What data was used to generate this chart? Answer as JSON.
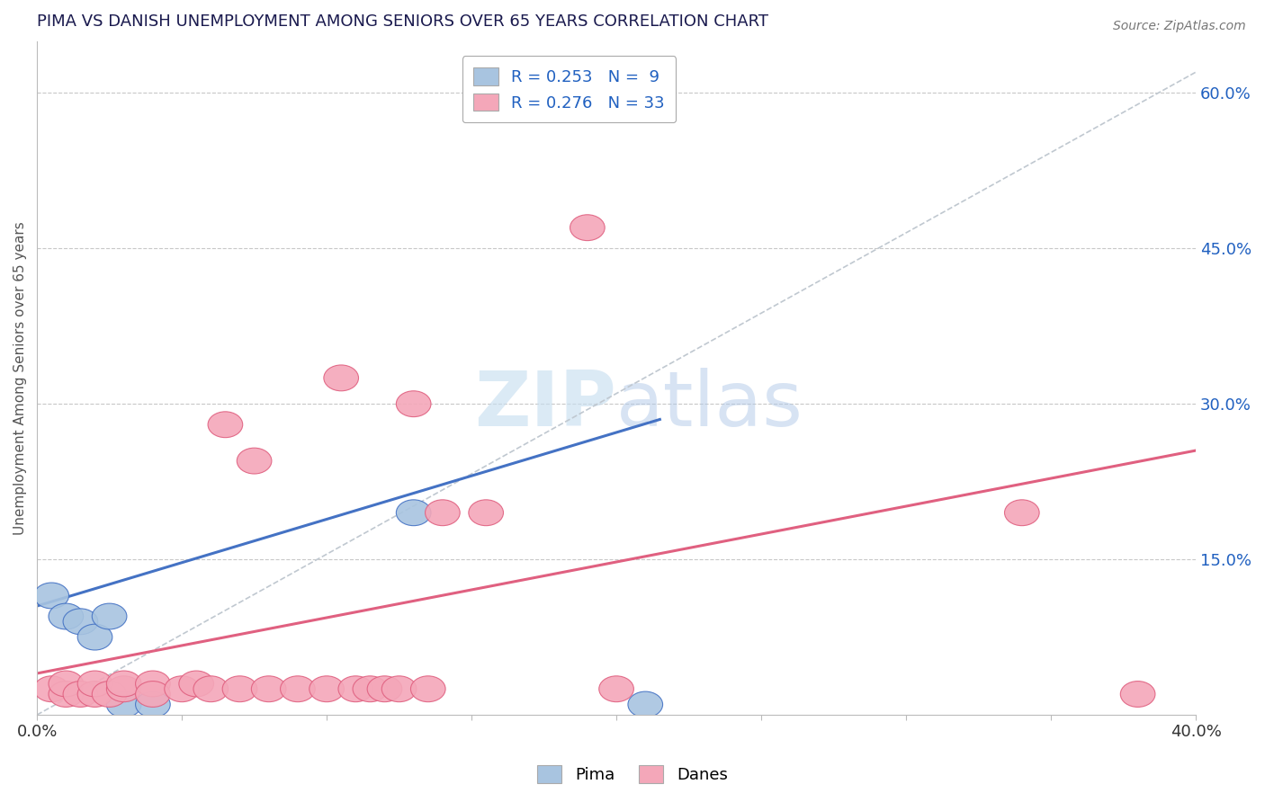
{
  "title": "PIMA VS DANISH UNEMPLOYMENT AMONG SENIORS OVER 65 YEARS CORRELATION CHART",
  "source_text": "Source: ZipAtlas.com",
  "ylabel": "Unemployment Among Seniors over 65 years",
  "xlim": [
    0.0,
    0.4
  ],
  "ylim": [
    0.0,
    0.65
  ],
  "xticks": [
    0.0,
    0.05,
    0.1,
    0.15,
    0.2,
    0.25,
    0.3,
    0.35,
    0.4
  ],
  "yticks_right": [
    0.15,
    0.3,
    0.45,
    0.6
  ],
  "ytick_right_labels": [
    "15.0%",
    "30.0%",
    "45.0%",
    "60.0%"
  ],
  "pima_color": "#a8c4e0",
  "pima_line_color": "#4472c4",
  "danes_color": "#f4a7b9",
  "danes_line_color": "#e06080",
  "dashed_line_color": "#c0c8d0",
  "legend_text_color": "#2060c0",
  "title_color": "#1a1a4e",
  "background_color": "#ffffff",
  "pima_scatter_x": [
    0.005,
    0.01,
    0.015,
    0.02,
    0.025,
    0.03,
    0.04,
    0.13,
    0.21
  ],
  "pima_scatter_y": [
    0.115,
    0.095,
    0.09,
    0.075,
    0.095,
    0.01,
    0.01,
    0.195,
    0.01
  ],
  "danes_scatter_x": [
    0.005,
    0.01,
    0.01,
    0.015,
    0.02,
    0.02,
    0.025,
    0.03,
    0.03,
    0.04,
    0.04,
    0.05,
    0.055,
    0.06,
    0.065,
    0.07,
    0.075,
    0.08,
    0.09,
    0.1,
    0.105,
    0.11,
    0.115,
    0.12,
    0.125,
    0.13,
    0.135,
    0.14,
    0.155,
    0.19,
    0.2,
    0.34,
    0.38
  ],
  "danes_scatter_y": [
    0.025,
    0.02,
    0.03,
    0.02,
    0.02,
    0.03,
    0.02,
    0.025,
    0.03,
    0.03,
    0.02,
    0.025,
    0.03,
    0.025,
    0.28,
    0.025,
    0.245,
    0.025,
    0.025,
    0.025,
    0.325,
    0.025,
    0.025,
    0.025,
    0.025,
    0.3,
    0.025,
    0.195,
    0.195,
    0.47,
    0.025,
    0.195,
    0.02
  ],
  "pima_line_x": [
    0.0,
    0.215
  ],
  "pima_line_y": [
    0.105,
    0.285
  ],
  "danes_line_x": [
    0.0,
    0.4
  ],
  "danes_line_y": [
    0.04,
    0.255
  ],
  "diag_line_x": [
    0.0,
    0.4
  ],
  "diag_line_y": [
    0.0,
    0.62
  ],
  "watermark_zip": "ZIP",
  "watermark_atlas": "atlas",
  "legend_R_pima": "R = 0.253",
  "legend_N_pima": "N =  9",
  "legend_R_danes": "R = 0.276",
  "legend_N_danes": "N = 33"
}
